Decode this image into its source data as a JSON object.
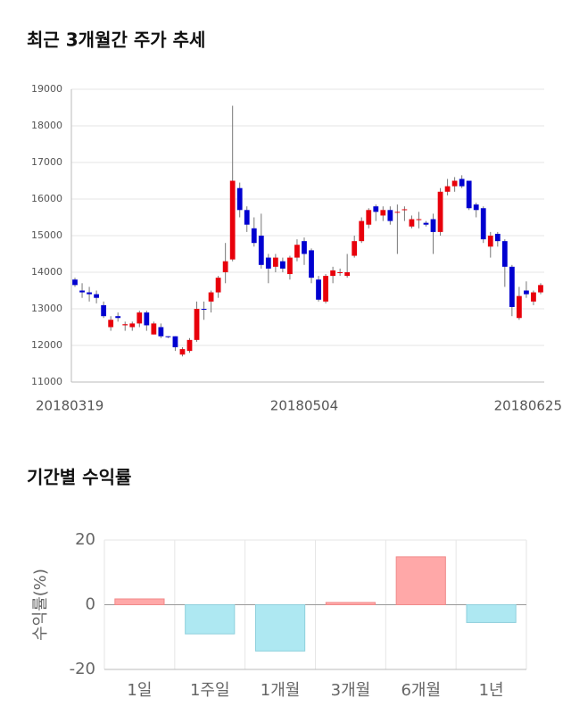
{
  "chart_data": [
    {
      "type": "candlestick",
      "title": "최근 3개월간 주가 추세",
      "categories": [
        "20180319",
        null,
        null,
        null,
        null,
        null,
        null,
        null,
        null,
        null,
        null,
        null,
        null,
        null,
        null,
        null,
        null,
        null,
        null,
        null,
        null,
        null,
        null,
        null,
        null,
        null,
        null,
        null,
        null,
        null,
        null,
        null,
        "20180504",
        null,
        null,
        null,
        null,
        null,
        null,
        null,
        null,
        null,
        null,
        null,
        null,
        null,
        null,
        null,
        null,
        null,
        null,
        null,
        null,
        null,
        null,
        null,
        null,
        null,
        null,
        null,
        null,
        null,
        null,
        null,
        null,
        "20180625"
      ],
      "open": [
        13800,
        13500,
        13450,
        13400,
        13100,
        12500,
        12800,
        12550,
        12500,
        12600,
        12900,
        12300,
        12500,
        12250,
        12250,
        11750,
        11850,
        12150,
        13000,
        13200,
        13450,
        14000,
        14350,
        16300,
        15700,
        15200,
        15000,
        14400,
        14150,
        14300,
        13950,
        14400,
        14850,
        14600,
        13800,
        13200,
        13900,
        14000,
        13900,
        14450,
        14850,
        15300,
        15800,
        15550,
        15700,
        15650,
        15700,
        15250,
        15450,
        15350,
        15450,
        15100,
        16200,
        16350,
        16550,
        16500,
        15850,
        15750,
        14700,
        15050,
        14850,
        14150,
        12750,
        13500,
        13200,
        13450
      ],
      "high": [
        13850,
        13700,
        13600,
        13500,
        13200,
        12800,
        12900,
        12650,
        12650,
        12950,
        12950,
        12650,
        12600,
        12250,
        12250,
        11950,
        12200,
        13200,
        13200,
        13500,
        13900,
        14800,
        18550,
        16450,
        15800,
        15500,
        15600,
        14500,
        14500,
        14400,
        14450,
        14900,
        14950,
        14650,
        13900,
        13950,
        14150,
        14100,
        14500,
        15000,
        15500,
        15750,
        15850,
        15800,
        15800,
        15850,
        15800,
        15550,
        15650,
        15400,
        15600,
        16300,
        16550,
        16600,
        16650,
        16500,
        15900,
        15800,
        15100,
        15100,
        14900,
        14200,
        13600,
        13750,
        13500,
        13700
      ],
      "low": [
        13600,
        13300,
        13200,
        13150,
        12750,
        12400,
        12650,
        12400,
        12400,
        12500,
        12400,
        12300,
        12200,
        12200,
        11850,
        11700,
        11800,
        12100,
        12700,
        12900,
        13300,
        13700,
        14300,
        15500,
        15100,
        14700,
        14100,
        13700,
        14000,
        14000,
        13800,
        14300,
        14200,
        13700,
        13200,
        13150,
        13700,
        13900,
        13850,
        14400,
        14800,
        15200,
        15400,
        15400,
        15300,
        14500,
        15400,
        15200,
        15200,
        15250,
        14500,
        15000,
        16100,
        16200,
        16300,
        15700,
        15500,
        14800,
        14400,
        14700,
        13600,
        12800,
        12700,
        13300,
        13100,
        13400
      ],
      "close": [
        13650,
        13450,
        13400,
        13300,
        12800,
        12700,
        12750,
        12580,
        12600,
        12900,
        12550,
        12600,
        12250,
        12230,
        11950,
        11900,
        12150,
        13000,
        12980,
        13450,
        13850,
        14300,
        16500,
        15700,
        15300,
        14800,
        14200,
        14100,
        14400,
        14100,
        14400,
        14750,
        14500,
        13850,
        13250,
        13900,
        14050,
        14000,
        14000,
        14850,
        15400,
        15700,
        15650,
        15700,
        15400,
        15650,
        15720,
        15450,
        15450,
        15300,
        15100,
        16200,
        16350,
        16500,
        16350,
        15750,
        15700,
        14900,
        15000,
        14850,
        14150,
        13050,
        13350,
        13400,
        13450,
        13650
      ],
      "up_color": "#e8000b",
      "down_color": "#0000d0",
      "ylim": [
        11000,
        19000
      ],
      "yticks": [
        11000,
        12000,
        13000,
        14000,
        15000,
        16000,
        17000,
        18000,
        19000
      ],
      "grid": true
    },
    {
      "type": "bar",
      "title": "기간별 수익률",
      "ylabel": "수익률(%)",
      "categories": [
        "1일",
        "1주일",
        "1개월",
        "3개월",
        "6개월",
        "1년"
      ],
      "values": [
        1.8,
        -9.0,
        -14.3,
        0.7,
        14.8,
        -5.5
      ],
      "pos_color": "#ffa8a8",
      "neg_color": "#aee8f2",
      "ylim": [
        -20,
        20
      ],
      "yticks": [
        -20,
        0,
        20
      ],
      "grid": true
    }
  ]
}
